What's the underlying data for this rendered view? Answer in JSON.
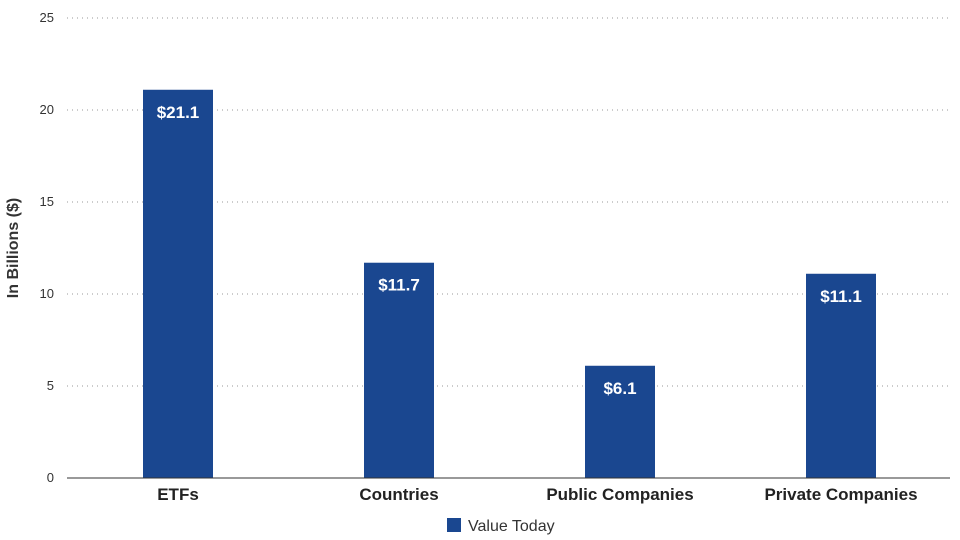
{
  "chart_data": {
    "type": "bar",
    "title": "",
    "xlabel": "",
    "ylabel": "In Billions ($)",
    "ylim": [
      0,
      25
    ],
    "yticks": [
      0,
      5,
      10,
      15,
      20,
      25
    ],
    "grid": true,
    "legend_position": "bottom",
    "categories": [
      "ETFs",
      "Countries",
      "Public Companies",
      "Private Companies"
    ],
    "series": [
      {
        "name": "Value Today",
        "color": "#1a4790",
        "values": [
          21.1,
          11.7,
          6.1,
          11.1
        ],
        "data_labels": [
          "$21.1",
          "$11.7",
          "$6.1",
          "$11.1"
        ]
      }
    ]
  }
}
